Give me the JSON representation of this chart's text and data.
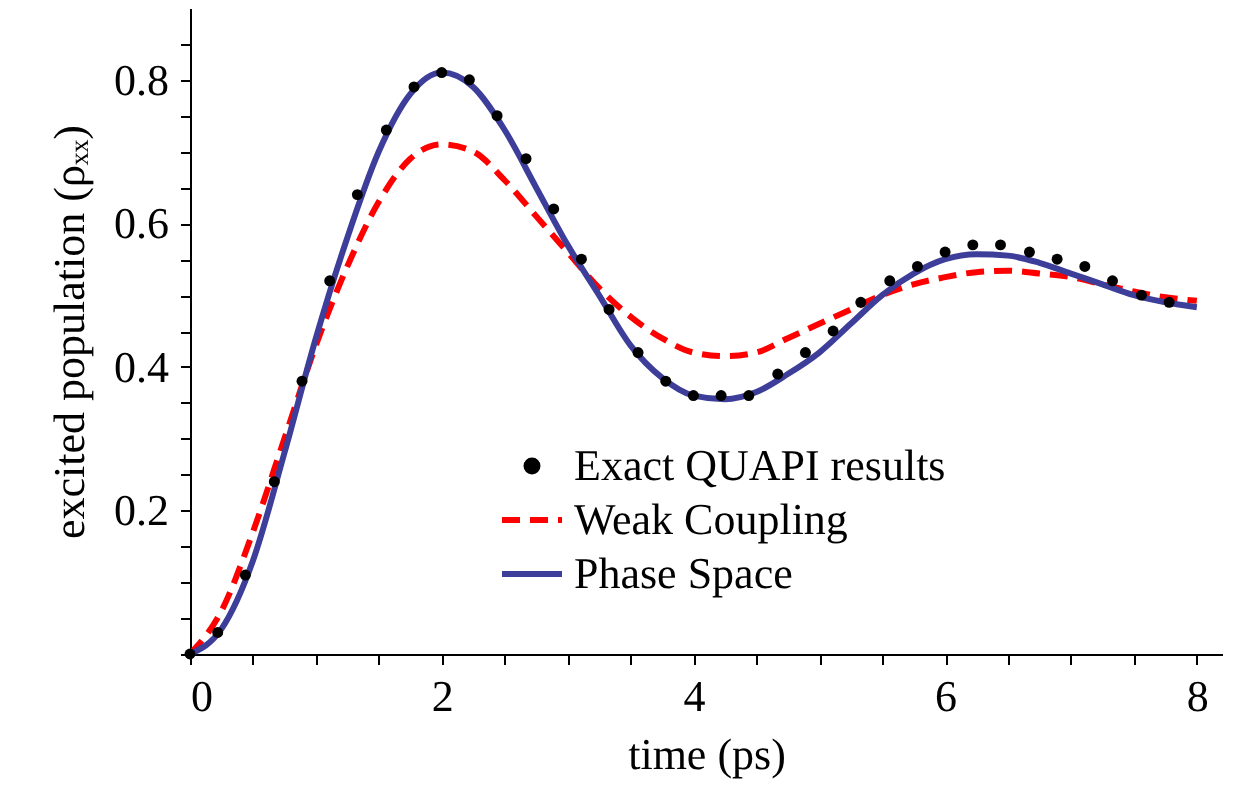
{
  "chart_data": {
    "type": "line",
    "xlabel": "time (ps)",
    "ylabel": "excited population (ρₓₓ)",
    "xlim": [
      0,
      8.2
    ],
    "ylim": [
      0,
      0.9
    ],
    "xticks": [
      0,
      {
        "value": 0.5,
        "label": null
      },
      {
        "value": 1,
        "label": null
      },
      {
        "value": 1.5,
        "label": null
      },
      2,
      {
        "value": 2.5,
        "label": null
      },
      {
        "value": 3,
        "label": null
      },
      {
        "value": 3.5,
        "label": null
      },
      4,
      {
        "value": 4.5,
        "label": null
      },
      {
        "value": 5,
        "label": null
      },
      {
        "value": 5.5,
        "label": null
      },
      6,
      {
        "value": 6.5,
        "label": null
      },
      {
        "value": 7,
        "label": null
      },
      {
        "value": 7.5,
        "label": null
      },
      8
    ],
    "yticks": [
      {
        "value": 0,
        "label": null
      },
      {
        "value": 0.05,
        "label": null
      },
      {
        "value": 0.1,
        "label": null
      },
      {
        "value": 0.15,
        "label": null
      },
      0.2,
      {
        "value": 0.25,
        "label": null
      },
      {
        "value": 0.3,
        "label": null
      },
      {
        "value": 0.35,
        "label": null
      },
      0.4,
      {
        "value": 0.45,
        "label": null
      },
      {
        "value": 0.5,
        "label": null
      },
      {
        "value": 0.55,
        "label": null
      },
      0.6,
      {
        "value": 0.65,
        "label": null
      },
      {
        "value": 0.7,
        "label": null
      },
      {
        "value": 0.75,
        "label": null
      },
      0.8,
      {
        "value": 0.85,
        "label": null
      }
    ],
    "grid": false,
    "legend": "bottom right",
    "series": [
      {
        "name": "Exact QUAPI results",
        "type": "scatter",
        "marker": "circle",
        "color": "#000000",
        "x": [
          0,
          0.22,
          0.44,
          0.67,
          0.89,
          1.11,
          1.33,
          1.56,
          1.78,
          2,
          2.22,
          2.44,
          2.67,
          2.89,
          3.11,
          3.33,
          3.56,
          3.78,
          4,
          4.22,
          4.44,
          4.67,
          4.89,
          5.11,
          5.33,
          5.56,
          5.78,
          6,
          6.22,
          6.44,
          6.67,
          6.89,
          7.11,
          7.33,
          7.56,
          7.78
        ],
        "values": [
          0,
          0.03,
          0.11,
          0.24,
          0.38,
          0.52,
          0.64,
          0.73,
          0.79,
          0.81,
          0.8,
          0.75,
          0.69,
          0.62,
          0.55,
          0.48,
          0.42,
          0.38,
          0.36,
          0.36,
          0.36,
          0.39,
          0.42,
          0.45,
          0.49,
          0.52,
          0.54,
          0.56,
          0.57,
          0.57,
          0.56,
          0.55,
          0.54,
          0.52,
          0.5,
          0.49
        ]
      },
      {
        "name": "Weak Coupling",
        "line_style": "dashed",
        "color": "#ff0000",
        "x": [
          0,
          0.25,
          0.5,
          0.75,
          1,
          1.25,
          1.5,
          1.75,
          2,
          2.25,
          2.5,
          2.75,
          3,
          3.25,
          3.5,
          3.75,
          4,
          4.25,
          4.5,
          4.75,
          5,
          5.25,
          5.5,
          5.75,
          6,
          6.25,
          6.5,
          6.75,
          7,
          7.25,
          7.5,
          7.75,
          8
        ],
        "values": [
          0,
          0.06,
          0.17,
          0.3,
          0.43,
          0.54,
          0.63,
          0.69,
          0.71,
          0.7,
          0.66,
          0.61,
          0.56,
          0.51,
          0.47,
          0.44,
          0.42,
          0.415,
          0.42,
          0.44,
          0.46,
          0.48,
          0.5,
          0.515,
          0.525,
          0.532,
          0.534,
          0.53,
          0.525,
          0.515,
          0.505,
          0.497,
          0.492
        ]
      },
      {
        "name": "Phase Space",
        "line_style": "solid",
        "color": "#3d3d9a",
        "x": [
          0,
          0.25,
          0.5,
          0.75,
          1,
          1.25,
          1.5,
          1.75,
          2,
          2.25,
          2.5,
          2.75,
          3,
          3.25,
          3.5,
          3.75,
          4,
          4.25,
          4.5,
          4.75,
          5,
          5.25,
          5.5,
          5.75,
          6,
          6.25,
          6.5,
          6.75,
          7,
          7.25,
          7.5,
          7.75,
          8
        ],
        "values": [
          0,
          0.035,
          0.13,
          0.28,
          0.44,
          0.58,
          0.7,
          0.78,
          0.81,
          0.79,
          0.73,
          0.65,
          0.57,
          0.5,
          0.43,
          0.385,
          0.36,
          0.355,
          0.365,
          0.39,
          0.42,
          0.46,
          0.5,
          0.53,
          0.55,
          0.557,
          0.555,
          0.545,
          0.53,
          0.515,
          0.5,
          0.49,
          0.483
        ]
      }
    ]
  }
}
